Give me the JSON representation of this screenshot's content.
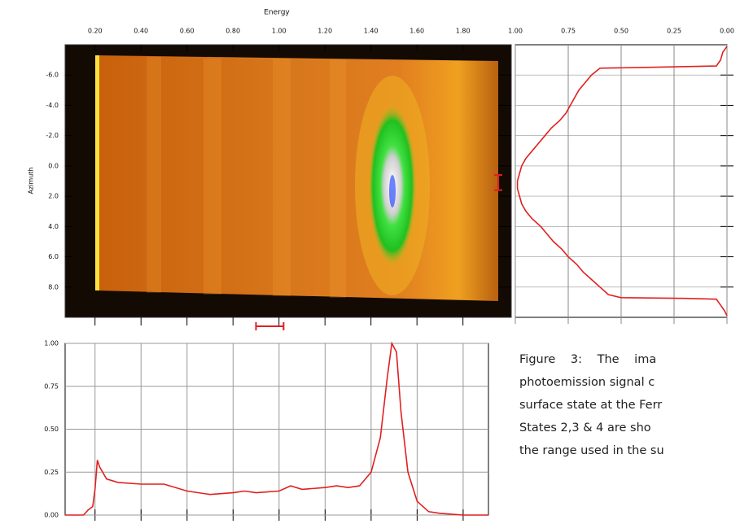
{
  "chart_data": [
    {
      "type": "heatmap",
      "title": "Energy",
      "y_label": "Azimuth",
      "xlim": [
        0.07,
        2.01
      ],
      "ylim": [
        -8,
        10
      ],
      "y_reversed": true,
      "xticks": [
        {
          "value": 0.2,
          "label": "0.20"
        },
        {
          "value": 0.4,
          "label": "0.40"
        },
        {
          "value": 0.6,
          "label": "0.60"
        },
        {
          "value": 0.8,
          "label": "0.80"
        },
        {
          "value": 1,
          "label": "1.00"
        },
        {
          "value": 1.2,
          "label": "1.20"
        },
        {
          "value": 1.4,
          "label": "1.40"
        },
        {
          "value": 1.6,
          "label": "1.60"
        },
        {
          "value": 1.8,
          "label": "1.80"
        }
      ],
      "yticks": [
        {
          "value": -6,
          "label": "-6.0"
        },
        {
          "value": -4,
          "label": "-4.0"
        },
        {
          "value": -2,
          "label": "-2.0"
        },
        {
          "value": 0,
          "label": "0.0"
        },
        {
          "value": 2,
          "label": "2.0"
        },
        {
          "value": 4,
          "label": "4.0"
        },
        {
          "value": 6,
          "label": "6.0"
        },
        {
          "value": 8,
          "label": "8.0"
        }
      ],
      "marked_energy_range": [
        0.9,
        1.02
      ],
      "marked_azimuth_range": [
        0.6,
        1.6
      ],
      "marker_color": "#e02020"
    },
    {
      "type": "profile",
      "color": "#e02020",
      "xlim": [
        1,
        0
      ],
      "ylim": [
        -8,
        10
      ],
      "y_reversed": true,
      "xticks": [
        {
          "value": 1,
          "label": "1.00"
        },
        {
          "value": 0.75,
          "label": "0.75"
        },
        {
          "value": 0.5,
          "label": "0.50"
        },
        {
          "value": 0.25,
          "label": "0.25"
        },
        {
          "value": 0,
          "label": "0.00"
        }
      ],
      "x": [
        -7.9,
        -7.5,
        -7.0,
        -6.6,
        -6.5,
        -6.45,
        -6.0,
        -5.5,
        -5.0,
        -4.5,
        -4.0,
        -3.5,
        -3.0,
        -2.5,
        -2.0,
        -1.5,
        -1.0,
        -0.5,
        0.0,
        0.5,
        1.0,
        1.5,
        2.0,
        2.5,
        3.0,
        3.5,
        4.0,
        4.5,
        5.0,
        5.5,
        6.0,
        6.5,
        7.0,
        7.5,
        8.0,
        8.5,
        8.7,
        8.75,
        8.8,
        9.2,
        9.6,
        9.9
      ],
      "values": [
        0.0,
        0.02,
        0.03,
        0.05,
        0.4,
        0.6,
        0.64,
        0.67,
        0.7,
        0.72,
        0.74,
        0.76,
        0.79,
        0.83,
        0.86,
        0.89,
        0.92,
        0.95,
        0.97,
        0.98,
        0.99,
        0.99,
        0.98,
        0.97,
        0.95,
        0.92,
        0.88,
        0.85,
        0.82,
        0.78,
        0.75,
        0.71,
        0.68,
        0.64,
        0.6,
        0.56,
        0.5,
        0.2,
        0.05,
        0.03,
        0.01,
        0.0
      ]
    },
    {
      "type": "line",
      "color": "#e02020",
      "xlim": [
        0.07,
        1.91
      ],
      "ylim": [
        0,
        1
      ],
      "yticks": [
        {
          "value": 0,
          "label": "0.00"
        },
        {
          "value": 0.25,
          "label": "0.25"
        },
        {
          "value": 0.5,
          "label": "0.50"
        },
        {
          "value": 0.75,
          "label": "0.75"
        },
        {
          "value": 1,
          "label": "1.00"
        }
      ],
      "x": [
        0.07,
        0.15,
        0.17,
        0.19,
        0.2,
        0.21,
        0.22,
        0.25,
        0.3,
        0.4,
        0.5,
        0.6,
        0.7,
        0.8,
        0.85,
        0.9,
        1.0,
        1.05,
        1.1,
        1.2,
        1.25,
        1.3,
        1.35,
        1.4,
        1.44,
        1.47,
        1.49,
        1.51,
        1.53,
        1.56,
        1.6,
        1.65,
        1.7,
        1.8,
        1.91
      ],
      "values": [
        0.0,
        0.0,
        0.03,
        0.05,
        0.15,
        0.32,
        0.28,
        0.21,
        0.19,
        0.18,
        0.18,
        0.14,
        0.12,
        0.13,
        0.14,
        0.13,
        0.14,
        0.17,
        0.15,
        0.16,
        0.17,
        0.16,
        0.17,
        0.25,
        0.45,
        0.8,
        1.0,
        0.95,
        0.6,
        0.25,
        0.08,
        0.02,
        0.01,
        0.0,
        0.0
      ]
    }
  ],
  "caption": [
    "Figure 3: The ima",
    "photoemission signal c",
    "surface state at the Ferr",
    "States 2,3 & 4 are sho",
    "the range used in the su"
  ]
}
